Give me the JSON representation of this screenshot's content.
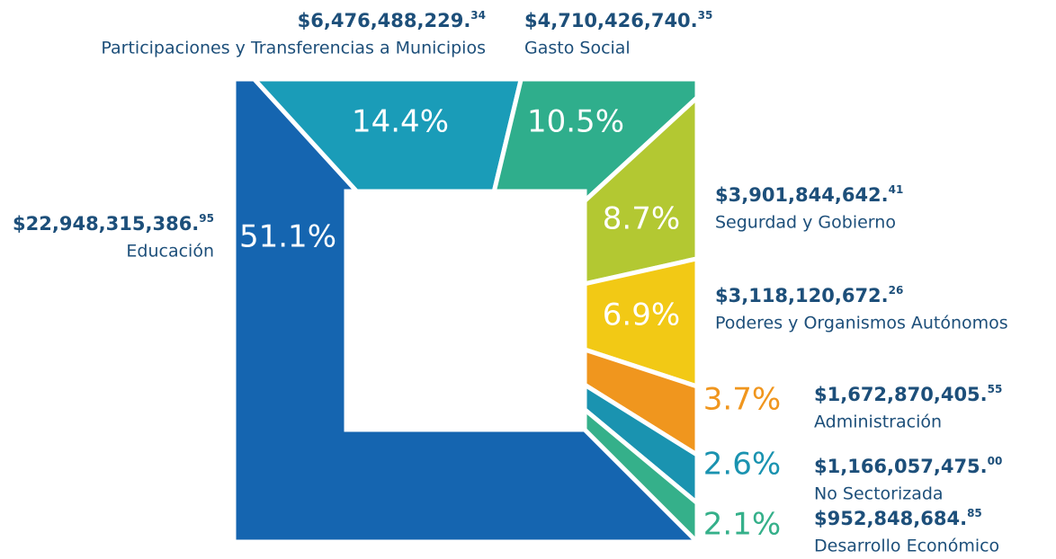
{
  "chart_data": {
    "type": "square-donut",
    "categories": [
      "Educación",
      "Participaciones y Transferencias a Municipios",
      "Gasto Social",
      "Segurdad y Gobierno",
      "Poderes y Organismos Autónomos",
      "Administración",
      "No Sectorizada",
      "Desarrollo Económico"
    ],
    "values": [
      51.1,
      14.4,
      10.5,
      8.7,
      6.9,
      3.7,
      2.6,
      2.1
    ],
    "value_labels": [
      "51.1%",
      "14.4%",
      "10.5%",
      "8.7%",
      "6.9%",
      "3.7%",
      "2.6%",
      "2.1%"
    ],
    "amounts": [
      "$22,948,315,386.",
      "$6,476,488,229.",
      "$4,710,426,740.",
      "$3,901,844,642.",
      "$3,118,120,672.",
      "$1,672,870,405.",
      "$1,166,057,475.",
      "$952,848,684."
    ],
    "amount_cents": [
      "95",
      "34",
      "35",
      "41",
      "26",
      "55",
      "00",
      "85"
    ],
    "colors": [
      "#1565b0",
      "#1a9cb8",
      "#2fae8c",
      "#b3c832",
      "#f2c915",
      "#f0961e",
      "#1a93b0",
      "#35b08a"
    ]
  }
}
